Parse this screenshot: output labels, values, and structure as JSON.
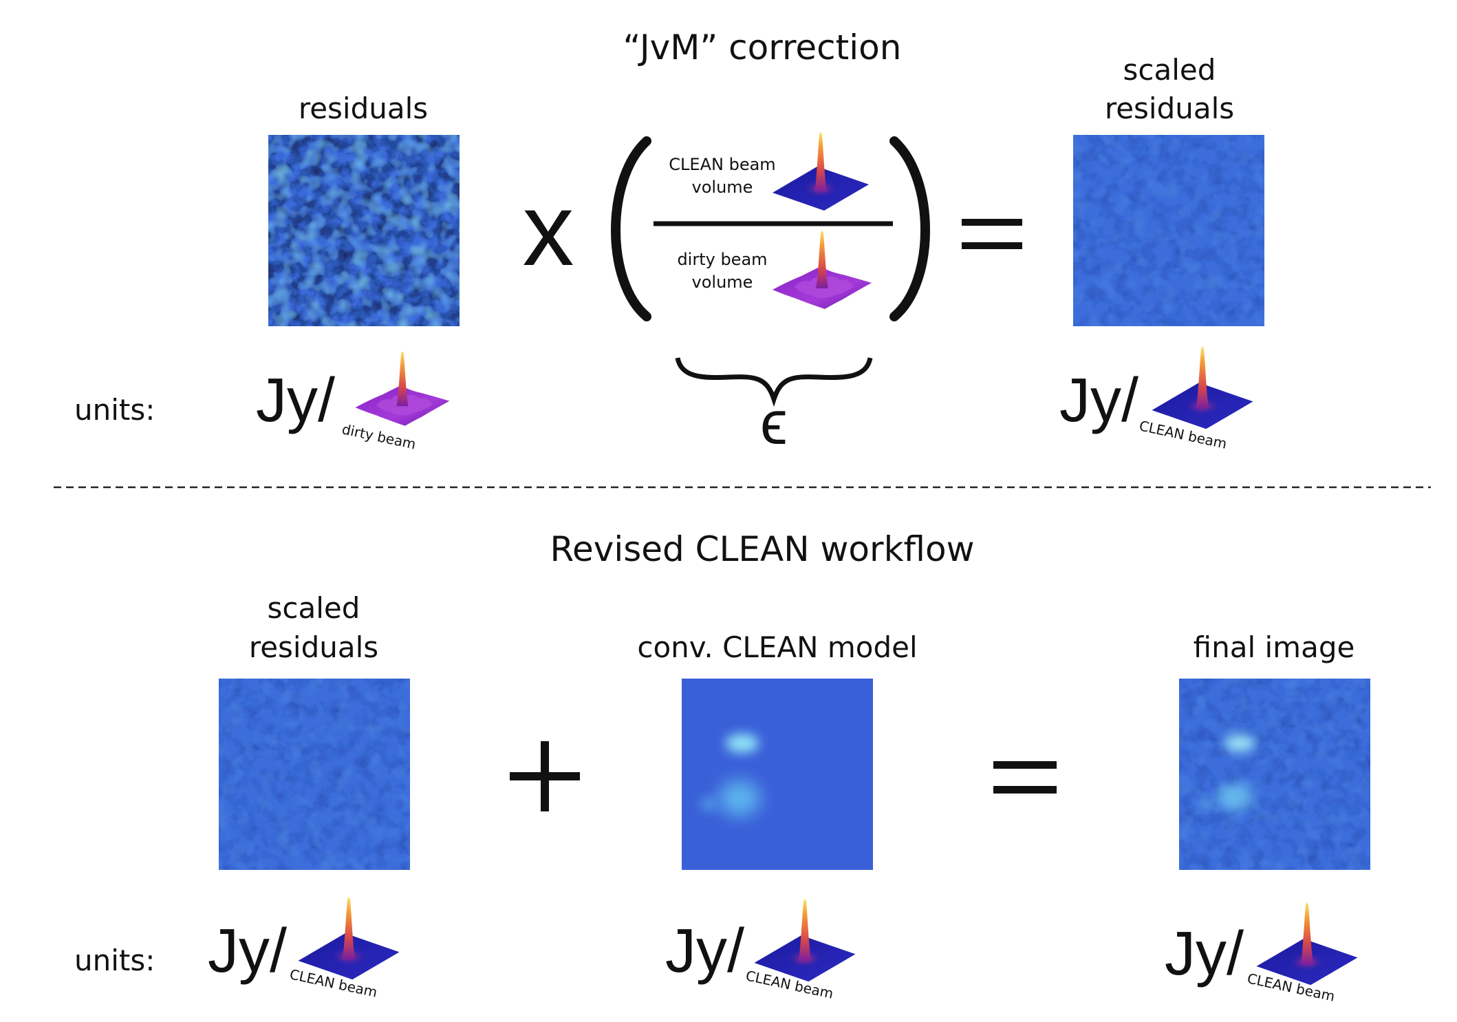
{
  "top": {
    "heading": "“JvM” correction",
    "residuals_label": "residuals",
    "scaled_residuals_label_1": "scaled",
    "scaled_residuals_label_2": "residuals",
    "times_symbol": "x",
    "equals_symbol": "=",
    "numerator_line_1": "CLEAN beam",
    "numerator_line_2": "volume",
    "denominator_line_1": "dirty beam",
    "denominator_line_2": "volume",
    "epsilon_symbol": "ϵ",
    "units_label": "units:",
    "unit_left_prefix": "Jy/",
    "unit_left_beam": "dirty beam",
    "unit_right_prefix": "Jy/",
    "unit_right_beam": "CLEAN beam"
  },
  "bottom": {
    "heading": "Revised CLEAN workflow",
    "scaled_residuals_label_1": "scaled",
    "scaled_residuals_label_2": "residuals",
    "model_label": "conv. CLEAN model",
    "final_label": "final image",
    "plus_symbol": "+",
    "equals_symbol": "=",
    "units_label": "units:",
    "unit_1_prefix": "Jy/",
    "unit_1_beam": "CLEAN beam",
    "unit_2_prefix": "Jy/",
    "unit_2_beam": "CLEAN beam",
    "unit_3_prefix": "Jy/",
    "unit_3_beam": "CLEAN beam"
  },
  "colors": {
    "map_base": "#3a67d8",
    "map_dark": "#142a6e",
    "map_light": "#6fb8ef",
    "beam_base": "#2a1a8c",
    "dirty_base": "#9b2bd0",
    "peak": "#f6c64a"
  }
}
